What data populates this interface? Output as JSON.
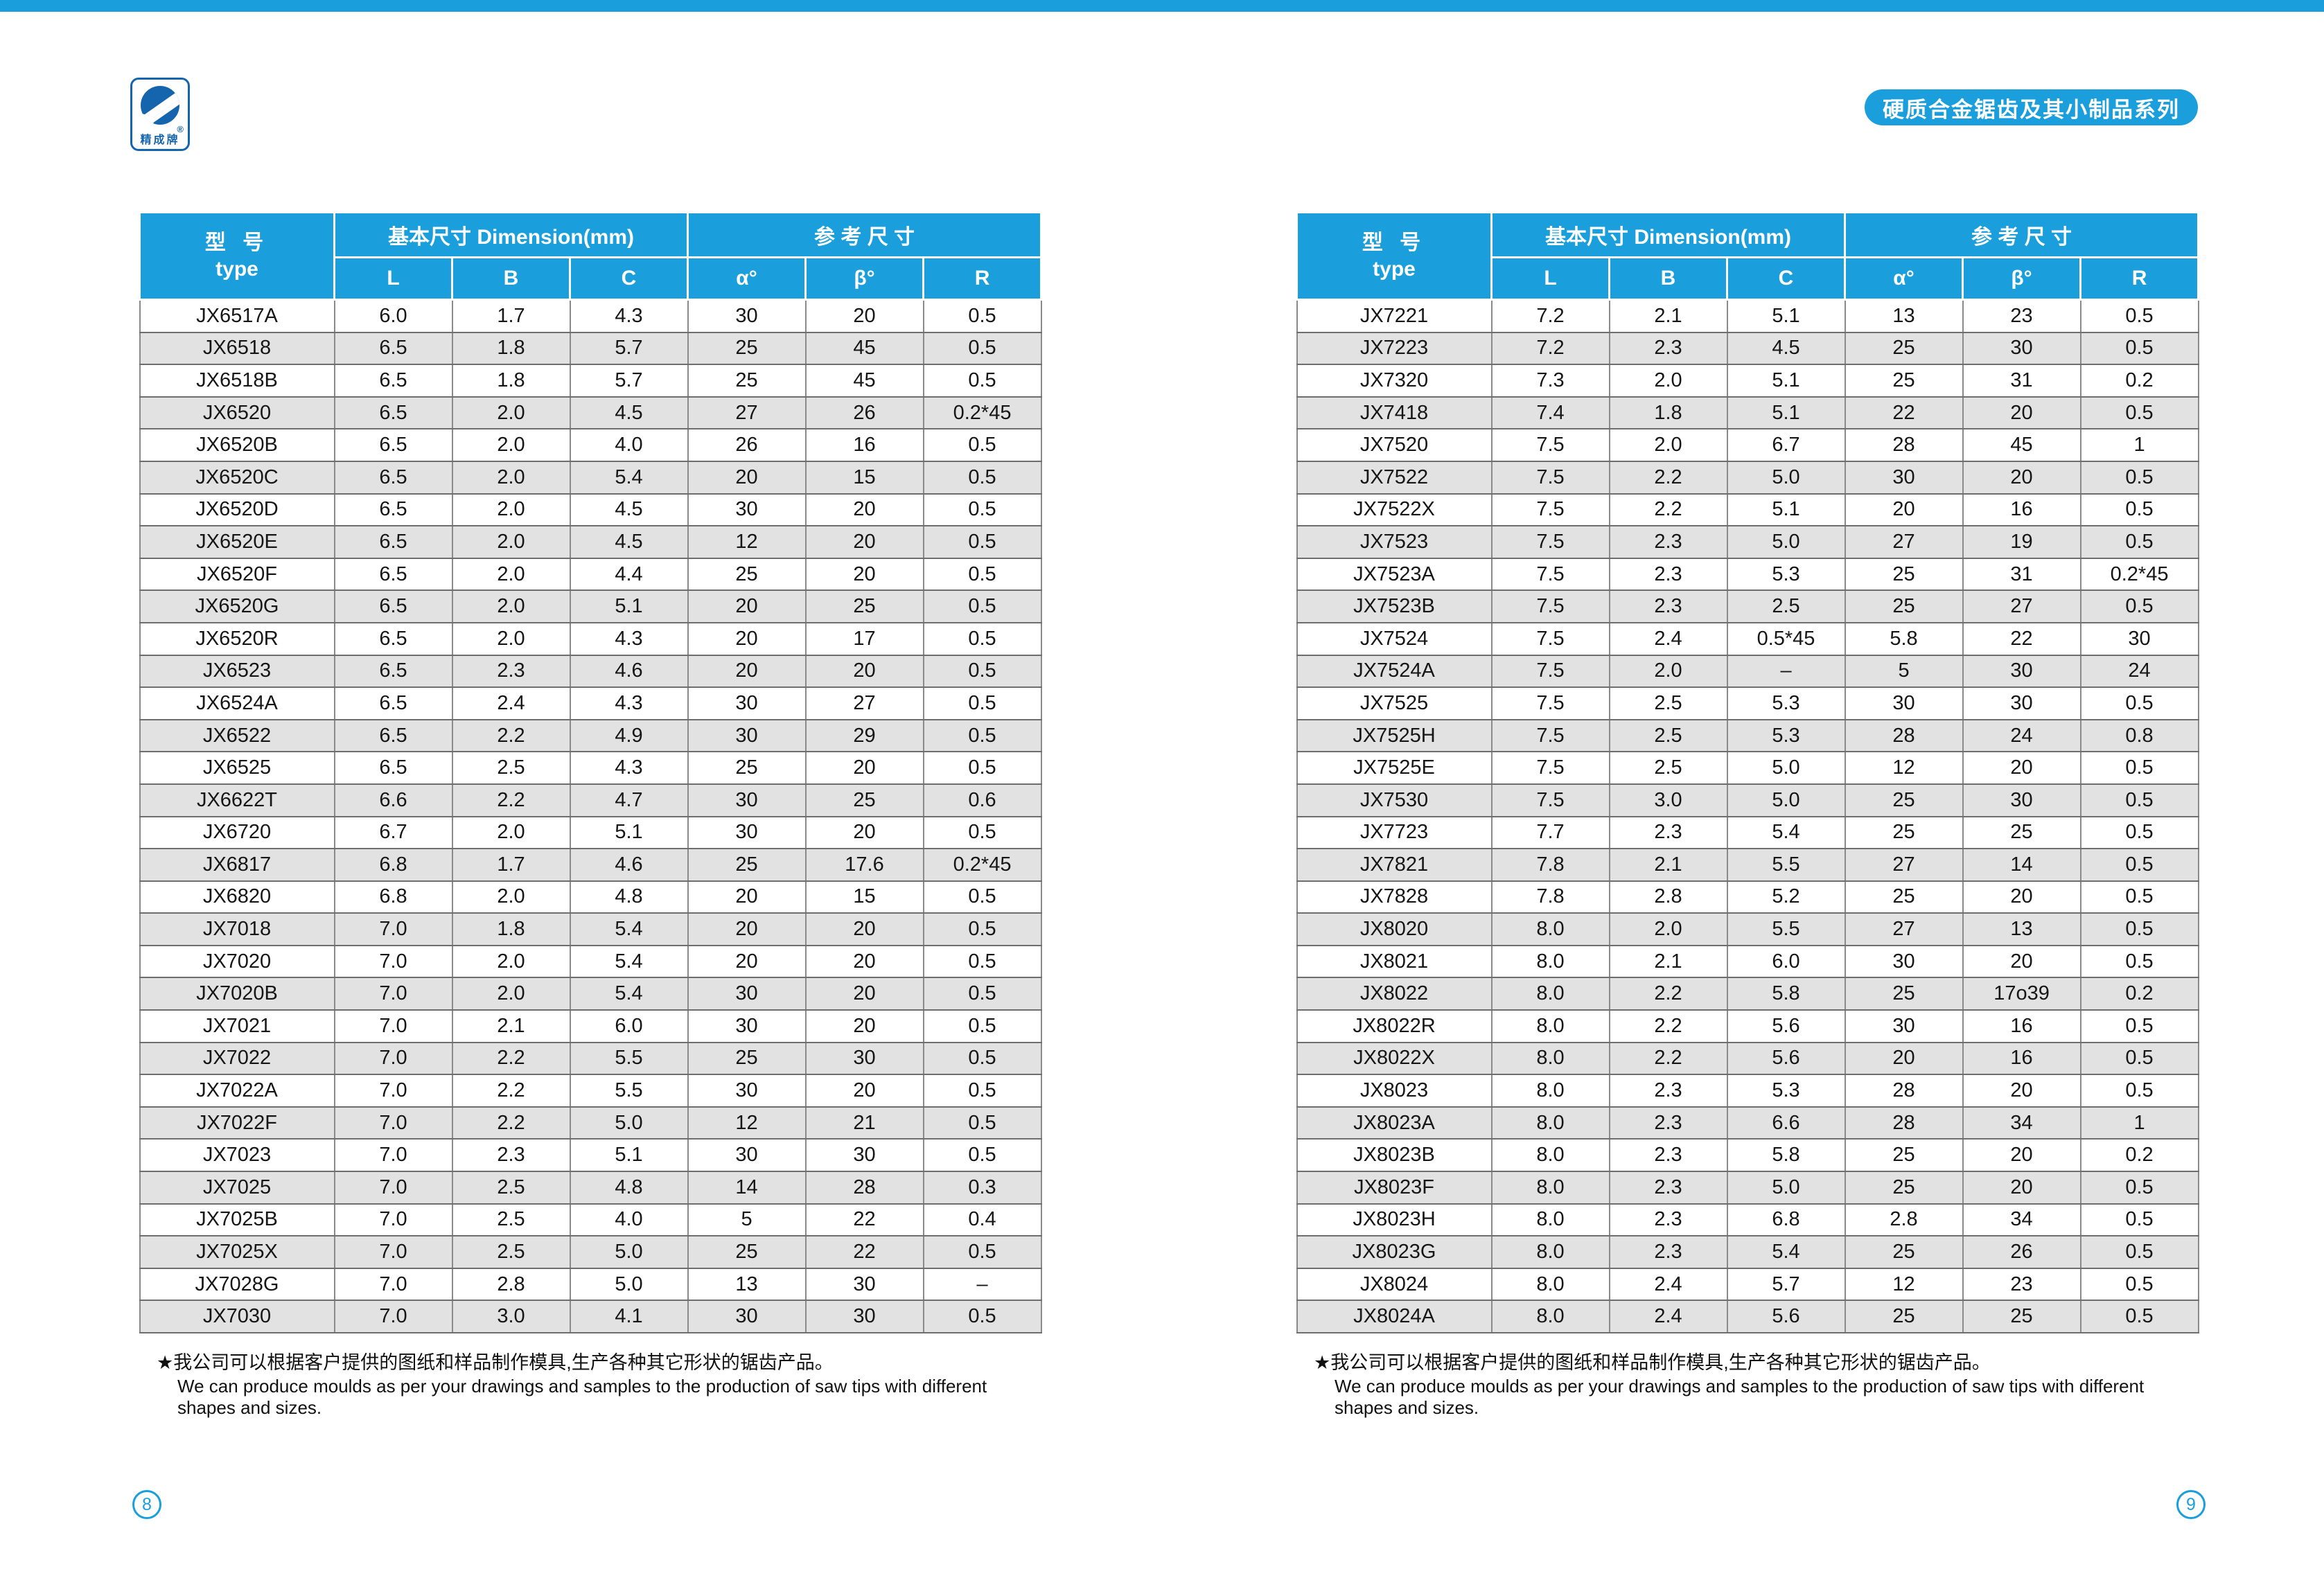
{
  "page": {
    "accent_blue": "#1A9FDC",
    "logo_blue": "#1565AE",
    "alt_row_gray": "#E2E2E2"
  },
  "logo": {
    "brand": "精成牌",
    "registered": "®"
  },
  "badge": {
    "text": "硬质合金锯齿及其小制品系列"
  },
  "table_header": {
    "type_zh": "型 号",
    "type_en": "type",
    "dimension_group": "基本尺寸 Dimension(mm)",
    "reference_group": "参 考 尺 寸",
    "columns": [
      "L",
      "B",
      "C",
      "α°",
      "β°",
      "R"
    ]
  },
  "footnote": {
    "zh": "★我公司可以根据客户提供的图纸和样品制作模具,生产各种其它形状的锯齿产品。",
    "en": "We can produce moulds as per your drawings and samples to the production of saw tips with different shapes and sizes."
  },
  "tables": [
    {
      "page_number": "8",
      "rows": [
        [
          "JX6517A",
          "6.0",
          "1.7",
          "4.3",
          "30",
          "20",
          "0.5"
        ],
        [
          "JX6518",
          "6.5",
          "1.8",
          "5.7",
          "25",
          "45",
          "0.5"
        ],
        [
          "JX6518B",
          "6.5",
          "1.8",
          "5.7",
          "25",
          "45",
          "0.5"
        ],
        [
          "JX6520",
          "6.5",
          "2.0",
          "4.5",
          "27",
          "26",
          "0.2*45"
        ],
        [
          "JX6520B",
          "6.5",
          "2.0",
          "4.0",
          "26",
          "16",
          "0.5"
        ],
        [
          "JX6520C",
          "6.5",
          "2.0",
          "5.4",
          "20",
          "15",
          "0.5"
        ],
        [
          "JX6520D",
          "6.5",
          "2.0",
          "4.5",
          "30",
          "20",
          "0.5"
        ],
        [
          "JX6520E",
          "6.5",
          "2.0",
          "4.5",
          "12",
          "20",
          "0.5"
        ],
        [
          "JX6520F",
          "6.5",
          "2.0",
          "4.4",
          "25",
          "20",
          "0.5"
        ],
        [
          "JX6520G",
          "6.5",
          "2.0",
          "5.1",
          "20",
          "25",
          "0.5"
        ],
        [
          "JX6520R",
          "6.5",
          "2.0",
          "4.3",
          "20",
          "17",
          "0.5"
        ],
        [
          "JX6523",
          "6.5",
          "2.3",
          "4.6",
          "20",
          "20",
          "0.5"
        ],
        [
          "JX6524A",
          "6.5",
          "2.4",
          "4.3",
          "30",
          "27",
          "0.5"
        ],
        [
          "JX6522",
          "6.5",
          "2.2",
          "4.9",
          "30",
          "29",
          "0.5"
        ],
        [
          "JX6525",
          "6.5",
          "2.5",
          "4.3",
          "25",
          "20",
          "0.5"
        ],
        [
          "JX6622T",
          "6.6",
          "2.2",
          "4.7",
          "30",
          "25",
          "0.6"
        ],
        [
          "JX6720",
          "6.7",
          "2.0",
          "5.1",
          "30",
          "20",
          "0.5"
        ],
        [
          "JX6817",
          "6.8",
          "1.7",
          "4.6",
          "25",
          "17.6",
          "0.2*45"
        ],
        [
          "JX6820",
          "6.8",
          "2.0",
          "4.8",
          "20",
          "15",
          "0.5"
        ],
        [
          "JX7018",
          "7.0",
          "1.8",
          "5.4",
          "20",
          "20",
          "0.5"
        ],
        [
          "JX7020",
          "7.0",
          "2.0",
          "5.4",
          "20",
          "20",
          "0.5"
        ],
        [
          "JX7020B",
          "7.0",
          "2.0",
          "5.4",
          "30",
          "20",
          "0.5"
        ],
        [
          "JX7021",
          "7.0",
          "2.1",
          "6.0",
          "30",
          "20",
          "0.5"
        ],
        [
          "JX7022",
          "7.0",
          "2.2",
          "5.5",
          "25",
          "30",
          "0.5"
        ],
        [
          "JX7022A",
          "7.0",
          "2.2",
          "5.5",
          "30",
          "20",
          "0.5"
        ],
        [
          "JX7022F",
          "7.0",
          "2.2",
          "5.0",
          "12",
          "21",
          "0.5"
        ],
        [
          "JX7023",
          "7.0",
          "2.3",
          "5.1",
          "30",
          "30",
          "0.5"
        ],
        [
          "JX7025",
          "7.0",
          "2.5",
          "4.8",
          "14",
          "28",
          "0.3"
        ],
        [
          "JX7025B",
          "7.0",
          "2.5",
          "4.0",
          "5",
          "22",
          "0.4"
        ],
        [
          "JX7025X",
          "7.0",
          "2.5",
          "5.0",
          "25",
          "22",
          "0.5"
        ],
        [
          "JX7028G",
          "7.0",
          "2.8",
          "5.0",
          "13",
          "30",
          "–"
        ],
        [
          "JX7030",
          "7.0",
          "3.0",
          "4.1",
          "30",
          "30",
          "0.5"
        ]
      ]
    },
    {
      "page_number": "9",
      "rows": [
        [
          "JX7221",
          "7.2",
          "2.1",
          "5.1",
          "13",
          "23",
          "0.5"
        ],
        [
          "JX7223",
          "7.2",
          "2.3",
          "4.5",
          "25",
          "30",
          "0.5"
        ],
        [
          "JX7320",
          "7.3",
          "2.0",
          "5.1",
          "25",
          "31",
          "0.2"
        ],
        [
          "JX7418",
          "7.4",
          "1.8",
          "5.1",
          "22",
          "20",
          "0.5"
        ],
        [
          "JX7520",
          "7.5",
          "2.0",
          "6.7",
          "28",
          "45",
          "1"
        ],
        [
          "JX7522",
          "7.5",
          "2.2",
          "5.0",
          "30",
          "20",
          "0.5"
        ],
        [
          "JX7522X",
          "7.5",
          "2.2",
          "5.1",
          "20",
          "16",
          "0.5"
        ],
        [
          "JX7523",
          "7.5",
          "2.3",
          "5.0",
          "27",
          "19",
          "0.5"
        ],
        [
          "JX7523A",
          "7.5",
          "2.3",
          "5.3",
          "25",
          "31",
          "0.2*45"
        ],
        [
          "JX7523B",
          "7.5",
          "2.3",
          "2.5",
          "25",
          "27",
          "0.5"
        ],
        [
          "JX7524",
          "7.5",
          "2.4",
          "0.5*45",
          "5.8",
          "22",
          "30"
        ],
        [
          "JX7524A",
          "7.5",
          "2.0",
          "–",
          "5",
          "30",
          "24"
        ],
        [
          "JX7525",
          "7.5",
          "2.5",
          "5.3",
          "30",
          "30",
          "0.5"
        ],
        [
          "JX7525H",
          "7.5",
          "2.5",
          "5.3",
          "28",
          "24",
          "0.8"
        ],
        [
          "JX7525E",
          "7.5",
          "2.5",
          "5.0",
          "12",
          "20",
          "0.5"
        ],
        [
          "JX7530",
          "7.5",
          "3.0",
          "5.0",
          "25",
          "30",
          "0.5"
        ],
        [
          "JX7723",
          "7.7",
          "2.3",
          "5.4",
          "25",
          "25",
          "0.5"
        ],
        [
          "JX7821",
          "7.8",
          "2.1",
          "5.5",
          "27",
          "14",
          "0.5"
        ],
        [
          "JX7828",
          "7.8",
          "2.8",
          "5.2",
          "25",
          "20",
          "0.5"
        ],
        [
          "JX8020",
          "8.0",
          "2.0",
          "5.5",
          "27",
          "13",
          "0.5"
        ],
        [
          "JX8021",
          "8.0",
          "2.1",
          "6.0",
          "30",
          "20",
          "0.5"
        ],
        [
          "JX8022",
          "8.0",
          "2.2",
          "5.8",
          "25",
          "17o39",
          "0.2"
        ],
        [
          "JX8022R",
          "8.0",
          "2.2",
          "5.6",
          "30",
          "16",
          "0.5"
        ],
        [
          "JX8022X",
          "8.0",
          "2.2",
          "5.6",
          "20",
          "16",
          "0.5"
        ],
        [
          "JX8023",
          "8.0",
          "2.3",
          "5.3",
          "28",
          "20",
          "0.5"
        ],
        [
          "JX8023A",
          "8.0",
          "2.3",
          "6.6",
          "28",
          "34",
          "1"
        ],
        [
          "JX8023B",
          "8.0",
          "2.3",
          "5.8",
          "25",
          "20",
          "0.2"
        ],
        [
          "JX8023F",
          "8.0",
          "2.3",
          "5.0",
          "25",
          "20",
          "0.5"
        ],
        [
          "JX8023H",
          "8.0",
          "2.3",
          "6.8",
          "2.8",
          "34",
          "0.5"
        ],
        [
          "JX8023G",
          "8.0",
          "2.3",
          "5.4",
          "25",
          "26",
          "0.5"
        ],
        [
          "JX8024",
          "8.0",
          "2.4",
          "5.7",
          "12",
          "23",
          "0.5"
        ],
        [
          "JX8024A",
          "8.0",
          "2.4",
          "5.6",
          "25",
          "25",
          "0.5"
        ]
      ]
    }
  ]
}
